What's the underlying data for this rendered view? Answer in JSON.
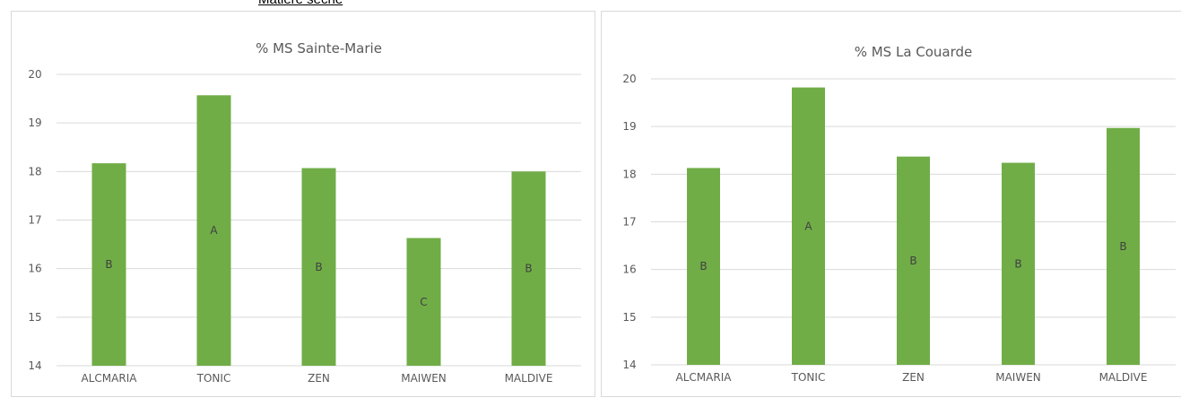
{
  "page": {
    "heading": "Matière sèche"
  },
  "colors": {
    "bar": "#70AD47",
    "grid": "#D9D9D9",
    "text": "#595959"
  },
  "chart_data": [
    {
      "type": "bar",
      "title": "% MS Sainte-Marie",
      "categories": [
        "ALCMARIA",
        "TONIC",
        "ZEN",
        "MAIWEN",
        "MALDIVE"
      ],
      "values": [
        18.17,
        19.57,
        18.07,
        16.63,
        18.0
      ],
      "bar_labels": [
        "B",
        "A",
        "B",
        "C",
        "B"
      ],
      "ylim": [
        14,
        20
      ],
      "yticks": [
        14,
        15,
        16,
        17,
        18,
        19,
        20
      ],
      "grid": true,
      "legend": "none"
    },
    {
      "type": "bar",
      "title": "% MS La Couarde",
      "categories": [
        "ALCMARIA",
        "TONIC",
        "ZEN",
        "MAIWEN",
        "MALDIVE"
      ],
      "values": [
        18.13,
        19.82,
        18.37,
        18.24,
        18.97
      ],
      "bar_labels": [
        "B",
        "A",
        "B",
        "B",
        "B"
      ],
      "ylim": [
        14,
        20
      ],
      "yticks": [
        14,
        15,
        16,
        17,
        18,
        19,
        20
      ],
      "grid": true,
      "legend": "none"
    }
  ]
}
